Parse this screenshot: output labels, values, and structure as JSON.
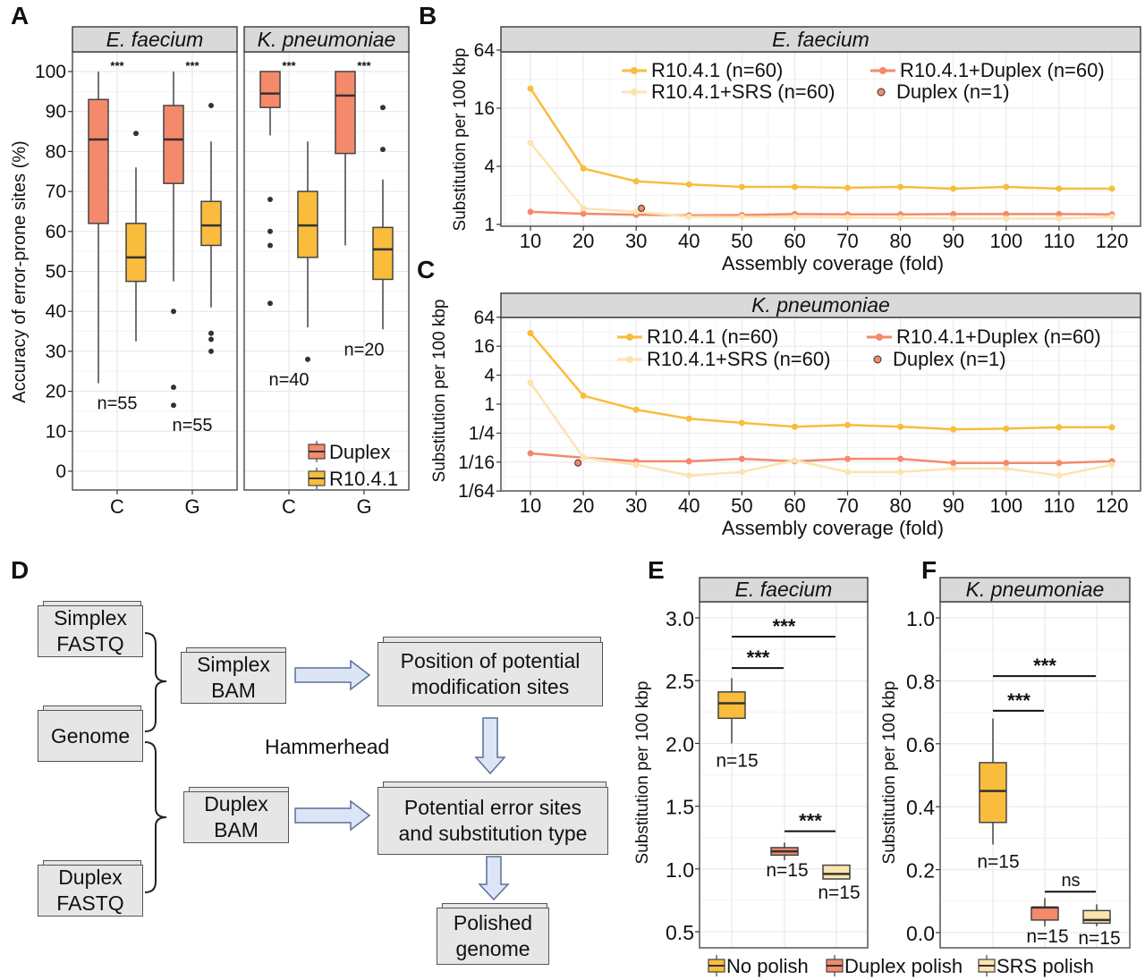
{
  "panel_labels": {
    "A": "A",
    "B": "B",
    "C": "C",
    "D": "D",
    "E": "E",
    "F": "F"
  },
  "colors": {
    "duplex": "#f4896b",
    "r1041": "#f9bc3d",
    "srs": "#fde3b0",
    "strip": "#d9d9d9",
    "arrow_fill": "#dbe5f5",
    "arrow_stroke": "#5b6f99"
  },
  "diagram": {
    "simplex_fastq": [
      "Simplex",
      "FASTQ"
    ],
    "genome": [
      "Genome"
    ],
    "duplex_fastq": [
      "Duplex",
      "FASTQ"
    ],
    "simplex_bam": [
      "Simplex",
      "BAM"
    ],
    "duplex_bam": [
      "Duplex",
      "BAM"
    ],
    "position_sites": [
      "Position of potential",
      "modification sites"
    ],
    "error_sites": [
      "Potential error sites",
      "and substitution type"
    ],
    "polished_genome": [
      "Polished",
      "genome"
    ],
    "tool_label": "Hammerhead"
  },
  "chart_data": [
    {
      "panel": "A",
      "type": "box",
      "ylabel": "Accuracy of error-prone sites (%)",
      "ylim": [
        -5,
        105
      ],
      "yticks": [
        0,
        10,
        20,
        30,
        40,
        50,
        60,
        70,
        80,
        90,
        100
      ],
      "grid": true,
      "legend": {
        "position": "bottom-right",
        "entries": [
          "Duplex",
          "R10.4.1"
        ]
      },
      "facets": [
        {
          "title": "E. faecium",
          "categories": [
            "C",
            "G"
          ],
          "groups": [
            {
              "category": "C",
              "n_label": "n=55",
              "significance": "***",
              "boxes": [
                {
                  "series": "Duplex",
                  "min": 22,
                  "q1": 62,
                  "median": 83,
                  "q3": 93,
                  "max": 100,
                  "outliers": []
                },
                {
                  "series": "R10.4.1",
                  "min": 32.5,
                  "q1": 47.5,
                  "median": 53.5,
                  "q3": 62,
                  "max": 76,
                  "outliers": [
                    84.5
                  ]
                }
              ]
            },
            {
              "category": "G",
              "n_label": "n=55",
              "significance": "***",
              "boxes": [
                {
                  "series": "Duplex",
                  "min": 47.5,
                  "q1": 72,
                  "median": 83,
                  "q3": 91.5,
                  "max": 100,
                  "outliers": [
                    40,
                    21,
                    16.5
                  ]
                },
                {
                  "series": "R10.4.1",
                  "min": 41,
                  "q1": 56.5,
                  "median": 61.5,
                  "q3": 67.5,
                  "max": 82.5,
                  "outliers": [
                    91.5,
                    34.5,
                    33,
                    30
                  ]
                }
              ]
            }
          ]
        },
        {
          "title": "K. pneumoniae",
          "categories": [
            "C",
            "G"
          ],
          "groups": [
            {
              "category": "C",
              "n_label": "n=40",
              "significance": "***",
              "boxes": [
                {
                  "series": "Duplex",
                  "min": 84,
                  "q1": 91,
                  "median": 94.5,
                  "q3": 100,
                  "max": 100,
                  "outliers": [
                    68,
                    60,
                    56.5,
                    42
                  ]
                },
                {
                  "series": "R10.4.1",
                  "min": 36,
                  "q1": 53.5,
                  "median": 61.5,
                  "q3": 70,
                  "max": 82.5,
                  "outliers": [
                    28
                  ]
                }
              ]
            },
            {
              "category": "G",
              "n_label": "n=20",
              "significance": "***",
              "boxes": [
                {
                  "series": "Duplex",
                  "min": 56.5,
                  "q1": 79.5,
                  "median": 94,
                  "q3": 100,
                  "max": 100,
                  "outliers": []
                },
                {
                  "series": "R10.4.1",
                  "min": 35.5,
                  "q1": 48,
                  "median": 55.5,
                  "q3": 61,
                  "max": 73,
                  "outliers": [
                    91,
                    80.5
                  ]
                }
              ]
            }
          ]
        }
      ]
    },
    {
      "panel": "B",
      "type": "line",
      "title": "E. faecium",
      "xlabel": "Assembly coverage (fold)",
      "ylabel": "Substitution per 100 kbp",
      "yscale": "log2",
      "x": [
        10,
        20,
        30,
        40,
        50,
        60,
        70,
        80,
        90,
        100,
        110,
        120
      ],
      "yticks": [
        {
          "label": "1",
          "value": 1
        },
        {
          "label": "4",
          "value": 4
        },
        {
          "label": "16",
          "value": 16
        },
        {
          "label": "64",
          "value": 64
        }
      ],
      "grid": true,
      "legend": "top",
      "series": [
        {
          "name": "R10.4.1 (n=60)",
          "key": "r1041",
          "values": [
            25.6,
            3.8,
            2.8,
            2.6,
            2.45,
            2.45,
            2.4,
            2.45,
            2.35,
            2.45,
            2.35,
            2.35
          ]
        },
        {
          "name": "R10.4.1+SRS (n=60)",
          "key": "srs",
          "values": [
            7,
            1.47,
            1.35,
            1.2,
            1.2,
            1.2,
            1.18,
            1.17,
            1.15,
            1.15,
            1.15,
            1.2
          ]
        },
        {
          "name": "R10.4.1+Duplex (n=60)",
          "key": "duplex",
          "values": [
            1.35,
            1.29,
            1.26,
            1.24,
            1.25,
            1.28,
            1.27,
            1.27,
            1.28,
            1.28,
            1.28,
            1.27
          ]
        }
      ],
      "point": {
        "name": "Duplex (n=1)",
        "x": 31,
        "y": 1.47
      }
    },
    {
      "panel": "C",
      "type": "line",
      "title": "K. pneumoniae",
      "xlabel": "Assembly coverage (fold)",
      "ylabel": "Substitution per 100 kbp",
      "yscale": "log2",
      "x": [
        10,
        20,
        30,
        40,
        50,
        60,
        70,
        80,
        90,
        100,
        110,
        120
      ],
      "yticks": [
        {
          "label": "1/64",
          "value": 0.015625
        },
        {
          "label": "1/16",
          "value": 0.0625
        },
        {
          "label": "1/4",
          "value": 0.25
        },
        {
          "label": "1",
          "value": 1
        },
        {
          "label": "4",
          "value": 4
        },
        {
          "label": "16",
          "value": 16
        },
        {
          "label": "64",
          "value": 64
        }
      ],
      "grid": true,
      "legend": "top",
      "series": [
        {
          "name": "R10.4.1 (n=60)",
          "key": "r1041",
          "values": [
            30,
            1.5,
            0.77,
            0.5,
            0.41,
            0.34,
            0.37,
            0.34,
            0.3,
            0.31,
            0.33,
            0.33
          ]
        },
        {
          "name": "R10.4.1+SRS (n=60)",
          "key": "srs",
          "values": [
            2.8,
            0.077,
            0.055,
            0.033,
            0.039,
            0.068,
            0.039,
            0.039,
            0.046,
            0.046,
            0.033,
            0.055
          ]
        },
        {
          "name": "R10.4.1+Duplex (n=60)",
          "key": "duplex",
          "values": [
            0.095,
            0.077,
            0.065,
            0.065,
            0.073,
            0.065,
            0.073,
            0.073,
            0.06,
            0.06,
            0.06,
            0.065
          ]
        }
      ],
      "point": {
        "name": "Duplex (n=1)",
        "x": 19,
        "y": 0.06
      }
    },
    {
      "panel": "E",
      "type": "box",
      "title": "E. faecium",
      "ylabel": "Substitution per 100 kbp",
      "ylim": [
        0.4,
        3.1
      ],
      "yticks": [
        "0.5",
        "1.0",
        "1.5",
        "2.0",
        "2.5",
        "3.0"
      ],
      "grid": true,
      "boxes": [
        {
          "series": "No polish",
          "n_label": "n=15",
          "min": 2.0,
          "q1": 2.2,
          "median": 2.32,
          "q3": 2.41,
          "max": 2.52
        },
        {
          "series": "Duplex polish",
          "n_label": "n=15",
          "min": 1.07,
          "q1": 1.11,
          "median": 1.14,
          "q3": 1.17,
          "max": 1.21
        },
        {
          "series": "SRS polish",
          "n_label": "n=15",
          "min": 0.92,
          "q1": 0.92,
          "median": 0.96,
          "q3": 1.03,
          "max": 1.03
        }
      ],
      "comparisons": [
        {
          "from": 0,
          "to": 2,
          "label": "***"
        },
        {
          "from": 0,
          "to": 1,
          "label": "***"
        },
        {
          "from": 1,
          "to": 2,
          "label": "***"
        }
      ]
    },
    {
      "panel": "F",
      "type": "box",
      "title": "K. pneumoniae",
      "ylabel": "Substitution per 100 kbp",
      "ylim": [
        -0.03,
        1.05
      ],
      "yticks": [
        "0.0",
        "0.2",
        "0.4",
        "0.6",
        "0.8",
        "1.0"
      ],
      "grid": true,
      "boxes": [
        {
          "series": "No polish",
          "n_label": "n=15",
          "min": 0.28,
          "q1": 0.35,
          "median": 0.45,
          "q3": 0.54,
          "max": 0.68
        },
        {
          "series": "Duplex polish",
          "n_label": "n=15",
          "min": 0.02,
          "q1": 0.04,
          "median": 0.08,
          "q3": 0.08,
          "max": 0.11
        },
        {
          "series": "SRS polish",
          "n_label": "n=15",
          "min": 0.02,
          "q1": 0.03,
          "median": 0.04,
          "q3": 0.07,
          "max": 0.09
        }
      ],
      "comparisons": [
        {
          "from": 0,
          "to": 2,
          "label": "***"
        },
        {
          "from": 0,
          "to": 1,
          "label": "***"
        },
        {
          "from": 1,
          "to": 2,
          "label": "ns"
        }
      ],
      "legend": {
        "position": "bottom",
        "entries": [
          "No polish",
          "Duplex polish",
          "SRS polish"
        ]
      }
    }
  ]
}
